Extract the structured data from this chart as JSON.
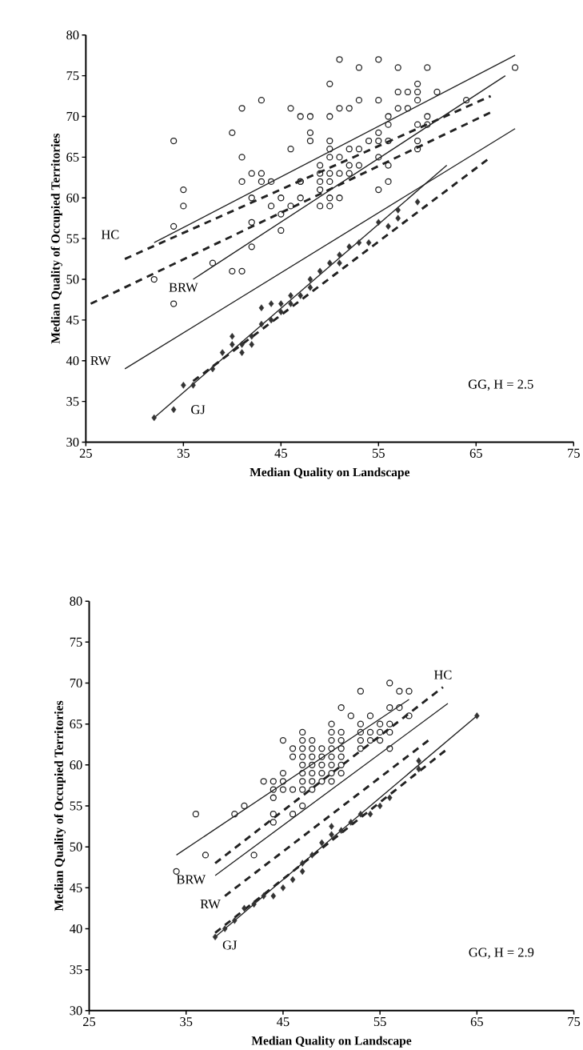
{
  "chart_data": [
    {
      "type": "scatter",
      "xlabel": "Median Quality on Landscape",
      "ylabel": "Median Quality of Occupied Territories",
      "xlim": [
        25,
        75
      ],
      "xticks": [
        25,
        35,
        45,
        55,
        65,
        75
      ],
      "ylim": [
        30,
        80
      ],
      "yticks": [
        30,
        35,
        40,
        45,
        50,
        55,
        60,
        65,
        70,
        75,
        80
      ],
      "series": [
        {
          "marker": "circle",
          "color": "#222222",
          "x": [
            34,
            35,
            35,
            34,
            32,
            34,
            38,
            40,
            41,
            41,
            41,
            40,
            41,
            42,
            42,
            42,
            42,
            43,
            43,
            43,
            44,
            44,
            45,
            45,
            45,
            46,
            46,
            47,
            48,
            48,
            48,
            47,
            47,
            46,
            51,
            53,
            55,
            57,
            60,
            69,
            50,
            50,
            51,
            52,
            53,
            55,
            57,
            58,
            59,
            59,
            59,
            61,
            57,
            58,
            56,
            56,
            59,
            60,
            60,
            64,
            59,
            59,
            55,
            55,
            56,
            54,
            53,
            52,
            51,
            50,
            50,
            50,
            55,
            56,
            55,
            56,
            49,
            49,
            49,
            49,
            49,
            50,
            50,
            51,
            52,
            52,
            53,
            50,
            51,
            50,
            47
          ],
          "values": [
            67,
            61,
            59,
            56.5,
            50,
            47,
            52,
            68,
            71,
            65,
            62,
            51,
            51,
            63,
            60,
            57,
            54,
            72,
            63,
            62,
            62,
            59,
            60,
            58,
            56,
            66,
            71,
            70,
            70,
            68,
            67,
            62,
            60,
            59,
            77,
            76,
            77,
            76,
            76,
            76,
            74,
            70,
            71,
            71,
            72,
            72,
            73,
            73,
            74,
            73,
            72,
            73,
            71,
            71,
            70,
            69,
            69,
            70,
            69,
            72,
            67,
            66,
            68,
            67,
            67,
            67,
            66,
            66,
            65,
            67,
            66,
            65,
            65,
            64,
            61,
            62,
            64,
            63,
            62,
            61,
            59,
            63,
            62,
            63,
            64,
            63,
            64,
            60,
            60,
            59,
            62
          ]
        },
        {
          "marker": "diamond",
          "color": "#333333",
          "x": [
            32,
            34,
            35,
            36,
            38,
            39,
            40,
            40,
            41,
            41,
            42,
            42,
            43,
            43,
            44,
            44,
            45,
            45,
            46,
            46,
            47,
            48,
            48,
            49,
            50,
            51,
            51,
            52,
            53,
            54,
            55,
            56,
            57,
            57,
            59
          ],
          "values": [
            33,
            34,
            37,
            37,
            39,
            41,
            43,
            42,
            41,
            42,
            42,
            43,
            46.5,
            44.5,
            47,
            45,
            46,
            47,
            47,
            48,
            48,
            50,
            49,
            51,
            52,
            52,
            53,
            54,
            54.5,
            54.5,
            57,
            56.5,
            58.5,
            57.5,
            59.5
          ]
        },
        {
          "type": "line",
          "line_style": "solid",
          "color": "#222222",
          "x": [
            32,
            69
          ],
          "values": [
            54.5,
            77.5
          ]
        },
        {
          "type": "line",
          "line_style": "solid",
          "color": "#222222",
          "x": [
            36,
            68
          ],
          "values": [
            50,
            75
          ]
        },
        {
          "type": "line",
          "line_style": "solid",
          "color": "#222222",
          "x": [
            29,
            69
          ],
          "values": [
            39,
            68.5
          ]
        },
        {
          "type": "line",
          "line_style": "solid",
          "color": "#222222",
          "x": [
            32,
            62
          ],
          "values": [
            33,
            64
          ]
        },
        {
          "type": "line",
          "line_style": "dashed",
          "color": "#222222",
          "x": [
            29,
            66.5
          ],
          "values": [
            52.5,
            72.5
          ]
        },
        {
          "type": "line",
          "line_style": "dashed",
          "color": "#222222",
          "x": [
            25.5,
            66.5
          ],
          "values": [
            47,
            70.5
          ]
        },
        {
          "type": "line",
          "line_style": "dashed",
          "color": "#222222",
          "x": [
            36,
            66.5
          ],
          "values": [
            37.5,
            65
          ]
        }
      ],
      "annotations": [
        "HC",
        "BRW",
        "RW",
        "GJ",
        "GG, H = 2.5"
      ]
    },
    {
      "type": "scatter",
      "xlabel": "Median Quality on Landscape",
      "ylabel": "Median Quality of Occupied Territories",
      "xlim": [
        25,
        75
      ],
      "xticks": [
        25,
        35,
        45,
        55,
        65,
        75
      ],
      "ylim": [
        30,
        80
      ],
      "yticks": [
        30,
        35,
        40,
        45,
        50,
        55,
        60,
        65,
        70,
        75,
        80
      ],
      "series": [
        {
          "marker": "circle",
          "color": "#222222",
          "x": [
            36,
            34,
            37,
            40,
            41,
            42,
            43,
            44,
            44,
            44,
            44,
            44,
            45,
            45,
            45,
            45,
            46,
            46,
            46,
            46,
            47,
            47,
            47,
            47,
            47,
            47,
            47,
            47,
            47,
            53,
            56,
            57,
            58,
            51,
            52,
            56,
            57,
            58,
            50,
            53,
            54,
            55,
            56,
            53,
            54,
            55,
            56,
            53,
            54,
            55,
            53,
            56,
            48,
            48,
            48,
            48,
            48,
            48,
            48,
            49,
            49,
            49,
            49,
            49,
            50,
            50,
            50,
            50,
            50,
            50,
            50,
            51,
            51,
            51,
            51,
            51,
            51
          ],
          "values": [
            54,
            47,
            49,
            54,
            55,
            49,
            58,
            58,
            57,
            56,
            54,
            53,
            63,
            59,
            58,
            57,
            62,
            61,
            57,
            54,
            64,
            63,
            62,
            61,
            60,
            59,
            58,
            57,
            55,
            69,
            70,
            69,
            69,
            67,
            66,
            67,
            67,
            66,
            65,
            65,
            66,
            65,
            65,
            64,
            64,
            64,
            64,
            63,
            63,
            63,
            62,
            62,
            63,
            62,
            61,
            60,
            59,
            58,
            57,
            62,
            61,
            60,
            59,
            58,
            64,
            63,
            62,
            61,
            60,
            59,
            58,
            64,
            63,
            62,
            61,
            60,
            59
          ]
        },
        {
          "marker": "diamond",
          "color": "#333333",
          "x": [
            38,
            39,
            40,
            41,
            42,
            43,
            44,
            45,
            46,
            47,
            47,
            48,
            49,
            50,
            50,
            51,
            52,
            53,
            54,
            55,
            56,
            59,
            59,
            65
          ],
          "values": [
            39,
            40,
            41,
            42.5,
            43,
            44,
            44,
            45,
            46,
            47,
            48,
            49,
            50.5,
            51.5,
            52.5,
            52,
            53,
            54,
            54,
            55,
            56,
            59.5,
            60.5,
            66
          ]
        },
        {
          "type": "line",
          "line_style": "solid",
          "color": "#222222",
          "x": [
            34,
            58
          ],
          "values": [
            49,
            68
          ]
        },
        {
          "type": "line",
          "line_style": "solid",
          "color": "#222222",
          "x": [
            38,
            62
          ],
          "values": [
            46.5,
            67.5
          ]
        },
        {
          "type": "line",
          "line_style": "solid",
          "color": "#222222",
          "x": [
            38,
            65
          ],
          "values": [
            39,
            66
          ]
        },
        {
          "type": "line",
          "line_style": "dashed",
          "color": "#222222",
          "x": [
            38,
            61.5
          ],
          "values": [
            48,
            69.5
          ]
        },
        {
          "type": "line",
          "line_style": "dashed",
          "color": "#222222",
          "x": [
            39,
            60
          ],
          "values": [
            44,
            63
          ]
        },
        {
          "type": "line",
          "line_style": "dashed",
          "color": "#222222",
          "x": [
            38,
            62
          ],
          "values": [
            39.5,
            62
          ]
        }
      ],
      "annotations": [
        "HC",
        "BRW",
        "RW",
        "GJ",
        "GG, H = 2.9"
      ]
    }
  ]
}
